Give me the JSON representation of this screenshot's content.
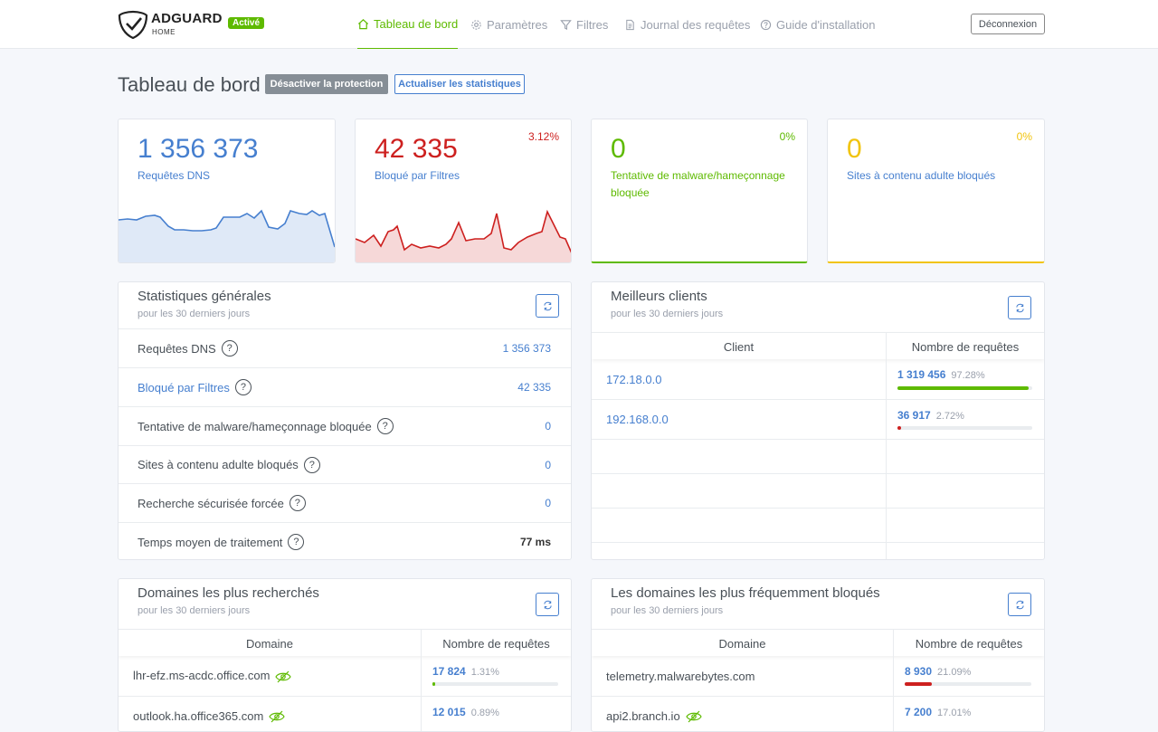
{
  "header": {
    "brand": "ADGUARD",
    "brand_sub": "HOME",
    "status_badge": "Activé",
    "nav": [
      {
        "label": "Tableau de bord",
        "icon": "home-icon"
      },
      {
        "label": "Paramètres",
        "icon": "gear-icon"
      },
      {
        "label": "Filtres",
        "icon": "filter-icon"
      },
      {
        "label": "Journal des requêtes",
        "icon": "document-icon"
      },
      {
        "label": "Guide d'installation",
        "icon": "help-circle-icon"
      }
    ],
    "logout": "Déconnexion"
  },
  "title_row": {
    "title": "Tableau de bord",
    "disable_btn": "Désactiver la protection",
    "refresh_btn": "Actualiser les statistiques"
  },
  "cards": [
    {
      "value": "1 356 373",
      "label": "Requêtes DNS",
      "pct": "",
      "color": "#467fcf"
    },
    {
      "value": "42 335",
      "label": "Bloqué par Filtres",
      "pct": "3.12%",
      "color": "#cd201f"
    },
    {
      "value": "0",
      "label": "Tentative de malware/hameçonnage bloquée",
      "pct": "0%",
      "color": "#5eba00"
    },
    {
      "value": "0",
      "label": "Sites à contenu adulte bloqués",
      "pct": "0%",
      "color": "#f1c40f"
    }
  ],
  "general_stats": {
    "title": "Statistiques générales",
    "subtitle": "pour les 30 derniers jours",
    "rows": [
      {
        "label": "Requêtes DNS",
        "value": "1 356 373"
      },
      {
        "label": "Bloqué par Filtres",
        "value": "42 335"
      },
      {
        "label": "Tentative de malware/hameçonnage bloquée",
        "value": "0"
      },
      {
        "label": "Sites à contenu adulte bloqués",
        "value": "0"
      },
      {
        "label": "Recherche sécurisée forcée",
        "value": "0"
      },
      {
        "label": "Temps moyen de traitement",
        "value": "77 ms"
      }
    ],
    "help": "?"
  },
  "top_clients": {
    "title": "Meilleurs clients",
    "subtitle": "pour les 30 derniers jours",
    "col_client": "Client",
    "col_requests": "Nombre de requêtes",
    "rows": [
      {
        "client": "172.18.0.0",
        "count": "1 319 456",
        "pct": "97.28%",
        "fraction": 0.9728,
        "color": "#5eba00"
      },
      {
        "client": "192.168.0.0",
        "count": "36 917",
        "pct": "2.72%",
        "fraction": 0.0272,
        "color": "#cd201f"
      }
    ]
  },
  "top_domains": {
    "title": "Domaines les plus recherchés",
    "subtitle": "pour les 30 derniers jours",
    "col_domain": "Domaine",
    "col_requests": "Nombre de requêtes",
    "rows": [
      {
        "domain": "lhr-efz.ms-acdc.office.com",
        "count": "17 824",
        "pct": "1.31%",
        "fraction": 0.0131,
        "color": "#5eba00"
      },
      {
        "domain": "outlook.ha.office365.com",
        "count": "12 015",
        "pct": "0.89%",
        "fraction": 0.0089,
        "color": "#5eba00"
      }
    ]
  },
  "top_blocked": {
    "title": "Les domaines les plus fréquemment bloqués",
    "subtitle": "pour les 30 derniers jours",
    "col_domain": "Domaine",
    "col_requests": "Nombre de requêtes",
    "rows": [
      {
        "domain": "telemetry.malwarebytes.com",
        "count": "8 930",
        "pct": "21.09%",
        "fraction": 0.2109,
        "color": "#cd201f"
      },
      {
        "domain": "api2.branch.io",
        "count": "7 200",
        "pct": "17.01%",
        "fraction": 0.1701,
        "color": "#cd201f"
      }
    ]
  }
}
